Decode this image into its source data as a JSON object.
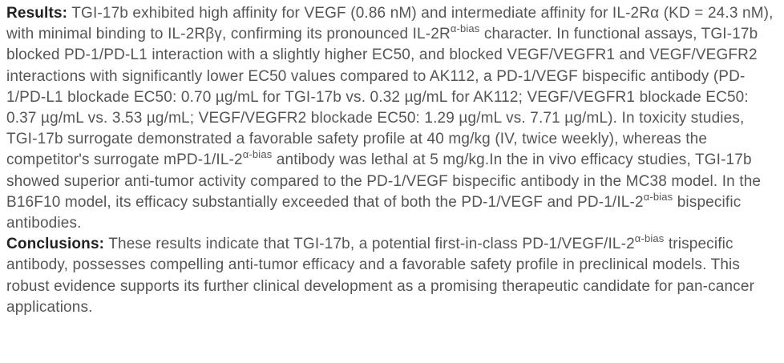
{
  "results": {
    "label": "Results:",
    "segments": [
      {
        "text": " TGI-17b exhibited high affinity for VEGF (0.86 nM) and intermediate affinity for IL-2Rα (KD = 24.3 nM), with minimal binding to IL-2Rβγ, confirming its pronounced IL-2R"
      },
      {
        "sup": "α-bias"
      },
      {
        "text": " character. In functional assays, TGI-17b blocked PD-1/PD-L1 interaction with a slightly higher EC50, and blocked VEGF/VEGFR1 and VEGF/VEGFR2 interactions with significantly lower EC50 values compared to AK112, a PD-1/VEGF bispecific antibody (PD-1/PD-L1 blockade EC50: 0.70 µg/mL for TGI-17b vs. 0.32 µg/mL for AK112; VEGF/VEGFR1 blockade EC50: 0.37 µg/mL vs. 3.53 µg/mL; VEGF/VEGFR2 blockade EC50: 1.29 µg/mL vs. 7.71 µg/mL). In toxicity studies, TGI-17b surrogate demonstrated a favorable safety profile at 40 mg/kg (IV, twice weekly), whereas the competitor's surrogate mPD-1/IL-2"
      },
      {
        "sup": "α-bias"
      },
      {
        "text": " antibody was lethal at 5 mg/kg.In the in vivo efficacy studies, TGI-17b showed superior anti-tumor activity compared to the PD-1/VEGF bispecific antibody in the MC38 model. In the B16F10 model, its efficacy substantially exceeded that of both the PD-1/VEGF and PD-1/IL-2"
      },
      {
        "sup": "α-bias"
      },
      {
        "text": " bispecific antibodies."
      }
    ]
  },
  "conclusions": {
    "label": "Conclusions:",
    "segments": [
      {
        "text": " These results indicate that TGI-17b, a potential first-in-class PD-1/VEGF/IL-2"
      },
      {
        "sup": "α-bias"
      },
      {
        "text": " trispecific antibody, possesses compelling anti-tumor efficacy and a favorable safety profile in preclinical models. This robust evidence supports its further clinical development as a promising therapeutic candidate for pan-cancer applications."
      }
    ]
  }
}
